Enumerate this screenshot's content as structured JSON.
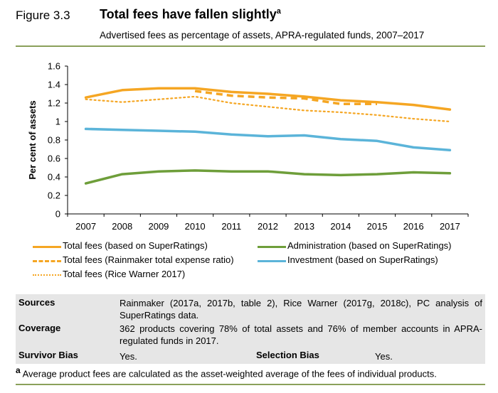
{
  "figure": {
    "label": "Figure 3.3",
    "title": "Total fees have fallen slightly",
    "title_sup": "a",
    "subtitle": "Advertised fees as percentage of assets, APRA-regulated funds, 2007–2017"
  },
  "chart_data": {
    "type": "line",
    "ylabel": "Per cent of assets",
    "xlabel": "",
    "ylim": [
      0,
      1.6
    ],
    "yticks": [
      "0",
      "0.2",
      "0.4",
      "0.6",
      "0.8",
      "1",
      "1.2",
      "1.4",
      "1.6"
    ],
    "x": [
      "2007",
      "2008",
      "2009",
      "2010",
      "2011",
      "2012",
      "2013",
      "2014",
      "2015",
      "2016",
      "2017"
    ],
    "grid": false,
    "legend_position": "bottom",
    "series": [
      {
        "name": "Total fees (based on SuperRatings)",
        "color": "#F5A623",
        "style": "solid",
        "values": [
          1.26,
          1.34,
          1.36,
          1.36,
          1.32,
          1.3,
          1.27,
          1.23,
          1.21,
          1.18,
          1.13
        ]
      },
      {
        "name": "Total fees (Rainmaker total expense ratio)",
        "color": "#F5A623",
        "style": "dashed",
        "values": [
          null,
          null,
          null,
          1.33,
          1.28,
          1.26,
          1.25,
          1.19,
          1.19,
          null,
          null
        ]
      },
      {
        "name": "Total fees (Rice Warner 2017)",
        "color": "#F5A623",
        "style": "dotted",
        "values": [
          1.24,
          1.21,
          1.24,
          1.27,
          1.2,
          1.16,
          1.12,
          1.1,
          1.07,
          1.03,
          1.0
        ]
      },
      {
        "name": "Administration (based on SuperRatings)",
        "color": "#6E9E3A",
        "style": "solid",
        "values": [
          0.33,
          0.43,
          0.46,
          0.47,
          0.46,
          0.46,
          0.43,
          0.42,
          0.43,
          0.45,
          0.44
        ]
      },
      {
        "name": "Investment (based on SuperRatings)",
        "color": "#5BB4D9",
        "style": "solid",
        "values": [
          0.92,
          0.91,
          0.9,
          0.89,
          0.86,
          0.84,
          0.85,
          0.81,
          0.79,
          0.72,
          0.69
        ]
      }
    ]
  },
  "sources": {
    "sources_label": "Sources",
    "sources_text": "Rainmaker (2017a, 2017b, table 2), Rice Warner (2017g, 2018c), PC analysis of SuperRatings data.",
    "coverage_label": "Coverage",
    "coverage_text": "362 products covering 78% of total assets and 76% of member accounts in APRA-regulated funds in 2017.",
    "survivor_label": "Survivor Bias",
    "survivor_value": "Yes.",
    "selection_label": "Selection Bias",
    "selection_value": "Yes."
  },
  "note": {
    "marker": "a",
    "text": "Average product fees are calculated as the asset-weighted average of the fees of individual products."
  }
}
